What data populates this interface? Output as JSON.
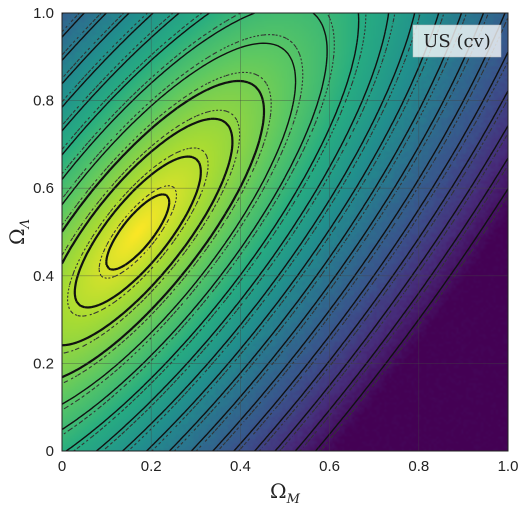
{
  "chart_data": {
    "type": "heatmap",
    "title": "",
    "panel_label": "US (cv)",
    "xlabel": {
      "symbol": "Ω",
      "subscript": "M"
    },
    "ylabel": {
      "symbol": "Ω",
      "subscript": "Λ"
    },
    "xlim": [
      0,
      1
    ],
    "ylim": [
      0,
      1
    ],
    "xticks": [
      "0",
      "0.2",
      "0.4",
      "0.6",
      "0.8",
      "1.0"
    ],
    "yticks": [
      "0",
      "0.2",
      "0.4",
      "0.6",
      "0.8",
      "1.0"
    ],
    "xtick_values": [
      0,
      0.2,
      0.4,
      0.6,
      0.8,
      1.0
    ],
    "ytick_values": [
      0,
      0.2,
      0.4,
      0.6,
      0.8,
      1.0
    ],
    "grid": true,
    "colormap": "viridis",
    "peak": {
      "x": 0.17,
      "y": 0.5
    },
    "description_of_field": "likelihood maximum near (0.17, 0.5), decreasing along a diagonal band toward lower-right",
    "contour_styles": [
      "solid",
      "dotted"
    ],
    "colors": {
      "high": "#f4e71f",
      "mid": "#31b87a",
      "low": "#3b4f8a",
      "lowest": "#45135a",
      "contour": "#111111",
      "grid": "#444444"
    }
  }
}
